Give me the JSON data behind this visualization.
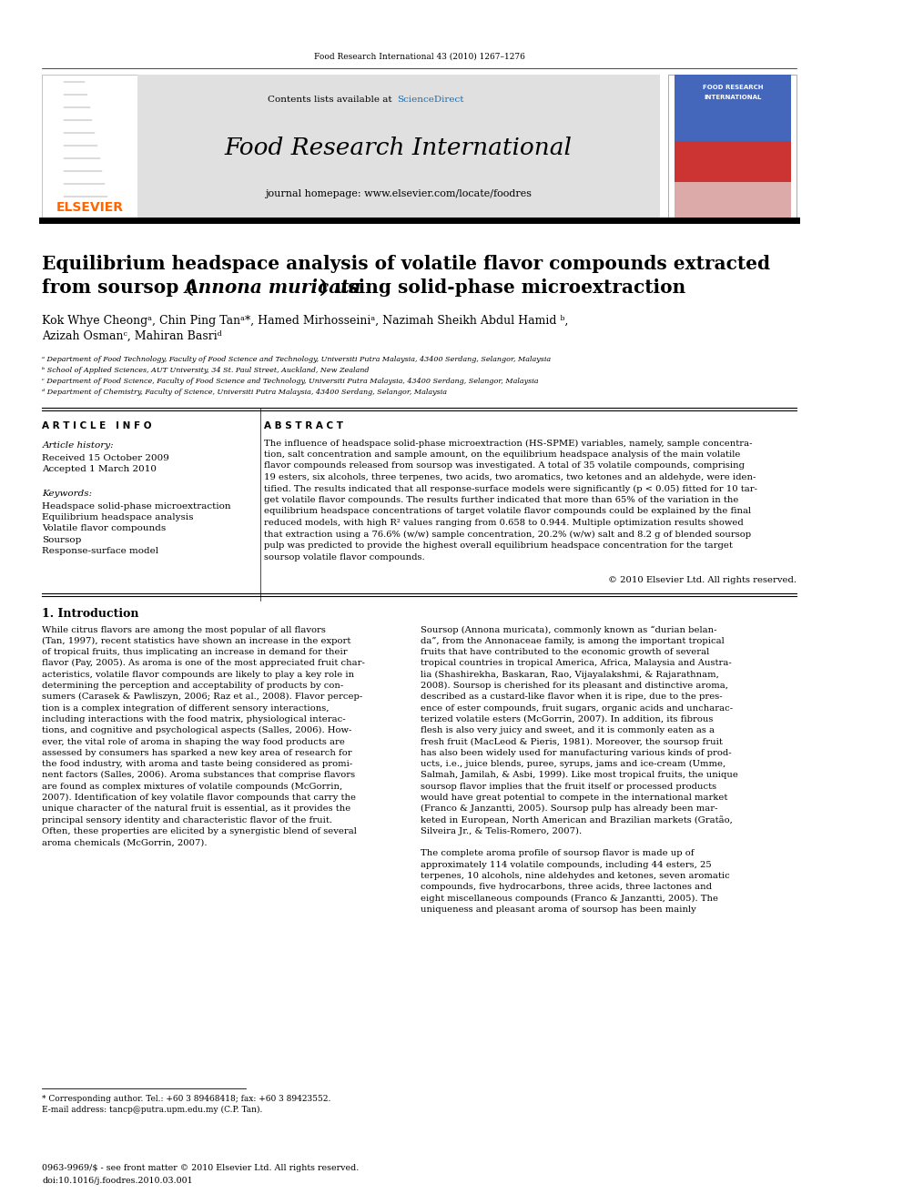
{
  "page_width": 9.92,
  "page_height": 13.23,
  "bg_color": "#ffffff",
  "top_margin_text": "Food Research International 43 (2010) 1267–1276",
  "header_bg": "#e0e0e0",
  "sciencedirect_color": "#1a6faf",
  "journal_title": "Food Research International",
  "homepage_text": "journal homepage: www.elsevier.com/locate/foodres",
  "elsevier_color": "#ff6600",
  "elsevier_text": "ELSEVIER",
  "article_title_line1": "Equilibrium headspace analysis of volatile flavor compounds extracted",
  "article_title_line2": "from soursop (",
  "article_title_italic": "Annona muricata",
  "article_title_line2b": ") using solid-phase microextraction",
  "authors": "Kok Whye Cheongᵃ, Chin Ping Tanᵃ*, Hamed Mirhosseiniᵃ, Nazimah Sheikh Abdul Hamid ᵇ,",
  "authors2": "Azizah Osmanᶜ, Mahiran Basriᵈ",
  "affil_a": "ᵃ Department of Food Technology, Faculty of Food Science and Technology, Universiti Putra Malaysia, 43400 Serdang, Selangor, Malaysia",
  "affil_b": "ᵇ School of Applied Sciences, AUT University, 34 St. Paul Street, Auckland, New Zealand",
  "affil_c": "ᶜ Department of Food Science, Faculty of Food Science and Technology, Universiti Putra Malaysia, 43400 Serdang, Selangor, Malaysia",
  "affil_d": "ᵈ Department of Chemistry, Faculty of Science, Universiti Putra Malaysia, 43400 Serdang, Selangor, Malaysia",
  "article_info_title": "A R T I C L E   I N F O",
  "abstract_title": "A B S T R A C T",
  "article_history": "Article history:",
  "received": "Received 15 October 2009",
  "accepted": "Accepted 1 March 2010",
  "keywords_title": "Keywords:",
  "keyword1": "Headspace solid-phase microextraction",
  "keyword2": "Equilibrium headspace analysis",
  "keyword3": "Volatile flavor compounds",
  "keyword4": "Soursop",
  "keyword5": "Response-surface model",
  "copyright_text": "© 2010 Elsevier Ltd. All rights reserved.",
  "intro_title": "1. Introduction",
  "footnote1": "* Corresponding author. Tel.: +60 3 89468418; fax: +60 3 89423552.",
  "footnote2": "E-mail address: tancp@putra.upm.edu.my (C.P. Tan).",
  "footer1": "0963-9969/$ - see front matter © 2010 Elsevier Ltd. All rights reserved.",
  "footer2": "doi:10.1016/j.foodres.2010.03.001",
  "abstract_lines": [
    "The influence of headspace solid-phase microextraction (HS-SPME) variables, namely, sample concentra-",
    "tion, salt concentration and sample amount, on the equilibrium headspace analysis of the main volatile",
    "flavor compounds released from soursop was investigated. A total of 35 volatile compounds, comprising",
    "19 esters, six alcohols, three terpenes, two acids, two aromatics, two ketones and an aldehyde, were iden-",
    "tified. The results indicated that all response-surface models were significantly (p < 0.05) fitted for 10 tar-",
    "get volatile flavor compounds. The results further indicated that more than 65% of the variation in the",
    "equilibrium headspace concentrations of target volatile flavor compounds could be explained by the final",
    "reduced models, with high R² values ranging from 0.658 to 0.944. Multiple optimization results showed",
    "that extraction using a 76.6% (w/w) sample concentration, 20.2% (w/w) salt and 8.2 g of blended soursop",
    "pulp was predicted to provide the highest overall equilibrium headspace concentration for the target",
    "soursop volatile flavor compounds."
  ],
  "intro_col1_lines": [
    "While citrus flavors are among the most popular of all flavors",
    "(Tan, 1997), recent statistics have shown an increase in the export",
    "of tropical fruits, thus implicating an increase in demand for their",
    "flavor (Pay, 2005). As aroma is one of the most appreciated fruit char-",
    "acteristics, volatile flavor compounds are likely to play a key role in",
    "determining the perception and acceptability of products by con-",
    "sumers (Carasek & Pawliszyn, 2006; Raz et al., 2008). Flavor percep-",
    "tion is a complex integration of different sensory interactions,",
    "including interactions with the food matrix, physiological interac-",
    "tions, and cognitive and psychological aspects (Salles, 2006). How-",
    "ever, the vital role of aroma in shaping the way food products are",
    "assessed by consumers has sparked a new key area of research for",
    "the food industry, with aroma and taste being considered as promi-",
    "nent factors (Salles, 2006). Aroma substances that comprise flavors",
    "are found as complex mixtures of volatile compounds (McGorrin,",
    "2007). Identification of key volatile flavor compounds that carry the",
    "unique character of the natural fruit is essential, as it provides the",
    "principal sensory identity and characteristic flavor of the fruit.",
    "Often, these properties are elicited by a synergistic blend of several",
    "aroma chemicals (McGorrin, 2007)."
  ],
  "intro_col2_lines": [
    "Soursop (Annona muricata), commonly known as “durian belan-",
    "da”, from the Annonaceae family, is among the important tropical",
    "fruits that have contributed to the economic growth of several",
    "tropical countries in tropical America, Africa, Malaysia and Austra-",
    "lia (Shashirekha, Baskaran, Rao, Vijayalakshmi, & Rajarathnam,",
    "2008). Soursop is cherished for its pleasant and distinctive aroma,",
    "described as a custard-like flavor when it is ripe, due to the pres-",
    "ence of ester compounds, fruit sugars, organic acids and uncharac-",
    "terized volatile esters (McGorrin, 2007). In addition, its fibrous",
    "flesh is also very juicy and sweet, and it is commonly eaten as a",
    "fresh fruit (MacLeod & Pieris, 1981). Moreover, the soursop fruit",
    "has also been widely used for manufacturing various kinds of prod-",
    "ucts, i.e., juice blends, puree, syrups, jams and ice-cream (Umme,",
    "Salmah, Jamilah, & Asbi, 1999). Like most tropical fruits, the unique",
    "soursop flavor implies that the fruit itself or processed products",
    "would have great potential to compete in the international market",
    "(Franco & Janzantti, 2005). Soursop pulp has already been mar-",
    "keted in European, North American and Brazilian markets (Gratão,",
    "Silveira Jr., & Telis-Romero, 2007).",
    "",
    "The complete aroma profile of soursop flavor is made up of",
    "approximately 114 volatile compounds, including 44 esters, 25",
    "terpenes, 10 alcohols, nine aldehydes and ketones, seven aromatic",
    "compounds, five hydrocarbons, three acids, three lactones and",
    "eight miscellaneous compounds (Franco & Janzantti, 2005). The",
    "uniqueness and pleasant aroma of soursop has been mainly"
  ]
}
